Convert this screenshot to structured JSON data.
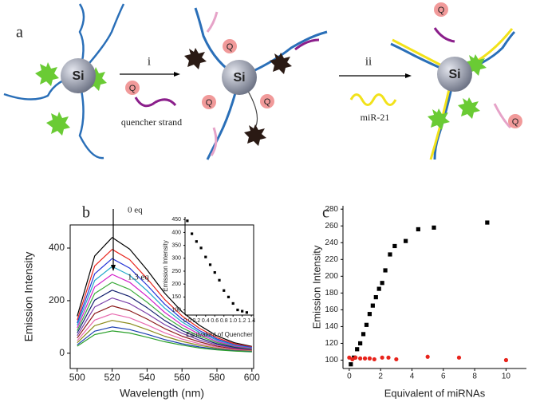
{
  "diagram": {
    "panel_label": "a",
    "si": "Si",
    "q": "Q",
    "step_i": "i",
    "step_ii": "ii",
    "quencher_strand": "quencher strand",
    "mir21": "miR-21"
  },
  "chart_data": [
    {
      "type": "line",
      "panel_label": "b",
      "x_label": "Wavelength (nm)",
      "y_label": "Emission Intensity",
      "annotations": [
        "0 eq",
        "1.3 eq"
      ],
      "x": [
        500,
        510,
        520,
        530,
        540,
        550,
        560,
        570,
        580,
        590,
        600
      ],
      "xlim": [
        496,
        601
      ],
      "xticks": [
        500,
        520,
        540,
        560,
        580,
        600
      ],
      "ylim": [
        -58,
        488
      ],
      "yticks": [
        0,
        200,
        400
      ],
      "series": [
        {
          "color": "#000000",
          "values": [
            141,
            370,
            440,
            396,
            317,
            229,
            158,
            106,
            66,
            40,
            26
          ]
        },
        {
          "color": "#e8241c",
          "values": [
            126,
            332,
            395,
            356,
            284,
            205,
            142,
            95,
            59,
            36,
            24
          ]
        },
        {
          "color": "#2433d6",
          "values": [
            115,
            302,
            360,
            324,
            259,
            187,
            130,
            86,
            54,
            32,
            22
          ]
        },
        {
          "color": "#1fa7c9",
          "values": [
            106,
            277,
            330,
            297,
            238,
            172,
            119,
            79,
            50,
            30,
            20
          ]
        },
        {
          "color": "#d21fc9",
          "values": [
            96,
            252,
            300,
            270,
            216,
            156,
            108,
            72,
            45,
            27,
            18
          ]
        },
        {
          "color": "#3cab3c",
          "values": [
            86,
            227,
            270,
            243,
            194,
            140,
            97,
            65,
            41,
            24,
            16
          ]
        },
        {
          "color": "#14206e",
          "values": [
            77,
            202,
            240,
            216,
            173,
            125,
            86,
            58,
            36,
            22,
            14
          ]
        },
        {
          "color": "#7a3fa8",
          "values": [
            67,
            176,
            210,
            189,
            151,
            109,
            76,
            50,
            32,
            19,
            13
          ]
        },
        {
          "color": "#8c1a1a",
          "values": [
            58,
            151,
            180,
            162,
            130,
            94,
            65,
            43,
            27,
            16,
            11
          ]
        },
        {
          "color": "#e86ab0",
          "values": [
            48,
            126,
            150,
            135,
            108,
            78,
            54,
            36,
            23,
            14,
            9
          ]
        },
        {
          "color": "#8a8a1a",
          "values": [
            40,
            105,
            125,
            113,
            90,
            65,
            45,
            30,
            19,
            11,
            8
          ]
        },
        {
          "color": "#1a3cb0",
          "values": [
            32,
            84,
            100,
            90,
            72,
            52,
            36,
            24,
            15,
            9,
            6
          ]
        },
        {
          "color": "#2aa02a",
          "values": [
            27,
            71,
            85,
            77,
            61,
            44,
            31,
            20,
            13,
            8,
            5
          ]
        }
      ]
    },
    {
      "type": "scatter",
      "x_label": "Equivalent of Quencher",
      "y_label": "Emission Intensity",
      "xlim": [
        -0.05,
        1.45
      ],
      "xticks": [
        {
          "value": 0,
          "label": "0.0"
        },
        0.2,
        0.4,
        0.6,
        0.8,
        {
          "value": 1,
          "label": "1.0"
        },
        1.2,
        1.4
      ],
      "ylim": [
        80,
        460
      ],
      "yticks": [
        100,
        150,
        200,
        250,
        300,
        350,
        400,
        450
      ],
      "series": [
        {
          "color": "#000000",
          "marker": "square",
          "x": [
            0,
            0.1,
            0.2,
            0.3,
            0.4,
            0.5,
            0.6,
            0.7,
            0.8,
            0.9,
            1,
            1.1,
            1.2,
            1.3
          ],
          "values": [
            445,
            395,
            365,
            340,
            305,
            275,
            245,
            215,
            175,
            150,
            125,
            100,
            95,
            90
          ]
        }
      ]
    },
    {
      "type": "scatter",
      "panel_label": "c",
      "x_label": "Equivalent of miRNAs",
      "y_label": "Emission Intensity",
      "xlim": [
        -0.4,
        11.3
      ],
      "xticks": [
        0,
        2,
        4,
        6,
        8,
        10
      ],
      "ylim": [
        90,
        284
      ],
      "yticks": [
        100,
        120,
        140,
        160,
        180,
        200,
        220,
        240,
        260,
        280
      ],
      "series": [
        {
          "color": "#000000",
          "marker": "square",
          "x": [
            0.1,
            0.3,
            0.5,
            0.7,
            0.9,
            1.1,
            1.3,
            1.5,
            1.7,
            1.9,
            2.1,
            2.3,
            2.6,
            2.9,
            3.6,
            4.4,
            5.4,
            8.8
          ],
          "values": [
            95,
            103,
            113,
            120,
            131,
            142,
            155,
            165,
            175,
            185,
            192,
            207,
            226,
            236,
            242,
            256,
            258,
            264
          ]
        },
        {
          "color": "#e8241c",
          "marker": "circle",
          "x": [
            0,
            0.2,
            0.4,
            0.7,
            1,
            1.3,
            1.6,
            2.1,
            2.5,
            3,
            5,
            7,
            10
          ],
          "values": [
            103,
            101,
            103,
            102,
            102,
            102,
            101,
            103,
            103,
            101,
            104,
            103,
            100
          ]
        }
      ]
    }
  ]
}
